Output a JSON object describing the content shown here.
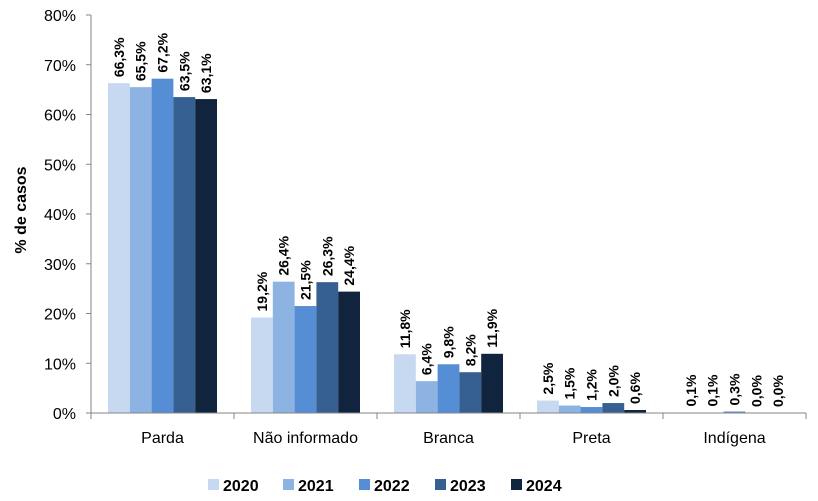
{
  "chart_data": {
    "type": "bar",
    "title": "",
    "xlabel": "",
    "ylabel": "% de casos",
    "ylim": [
      0,
      80
    ],
    "yticks": [
      "0%",
      "10%",
      "20%",
      "30%",
      "40%",
      "50%",
      "60%",
      "70%",
      "80%"
    ],
    "grid": false,
    "legend_position": "bottom",
    "categories": [
      "Parda",
      "Não informado",
      "Branca",
      "Preta",
      "Indígena"
    ],
    "series": [
      {
        "name": "2020",
        "color": "#c6d9f1",
        "values": [
          66.3,
          19.2,
          11.8,
          2.5,
          0.1
        ],
        "labels": [
          "66,3%",
          "19,2%",
          "11,8%",
          "2,5%",
          "0,1%"
        ]
      },
      {
        "name": "2021",
        "color": "#8db3e2",
        "values": [
          65.5,
          26.4,
          6.4,
          1.5,
          0.1
        ],
        "labels": [
          "65,5%",
          "26,4%",
          "6,4%",
          "1,5%",
          "0,1%"
        ]
      },
      {
        "name": "2022",
        "color": "#558ed5",
        "values": [
          67.2,
          21.5,
          9.8,
          1.2,
          0.3
        ],
        "labels": [
          "67,2%",
          "21,5%",
          "9,8%",
          "1,2%",
          "0,3%"
        ]
      },
      {
        "name": "2023",
        "color": "#376092",
        "values": [
          63.5,
          26.3,
          8.2,
          2.0,
          0.0
        ],
        "labels": [
          "63,5%",
          "26,3%",
          "8,2%",
          "2,0%",
          "0,0%"
        ]
      },
      {
        "name": "2024",
        "color": "#10243e",
        "values": [
          63.1,
          24.4,
          11.9,
          0.6,
          0.0
        ],
        "labels": [
          "63,1%",
          "24,4%",
          "11,9%",
          "0,6%",
          "0,0%"
        ]
      }
    ]
  }
}
